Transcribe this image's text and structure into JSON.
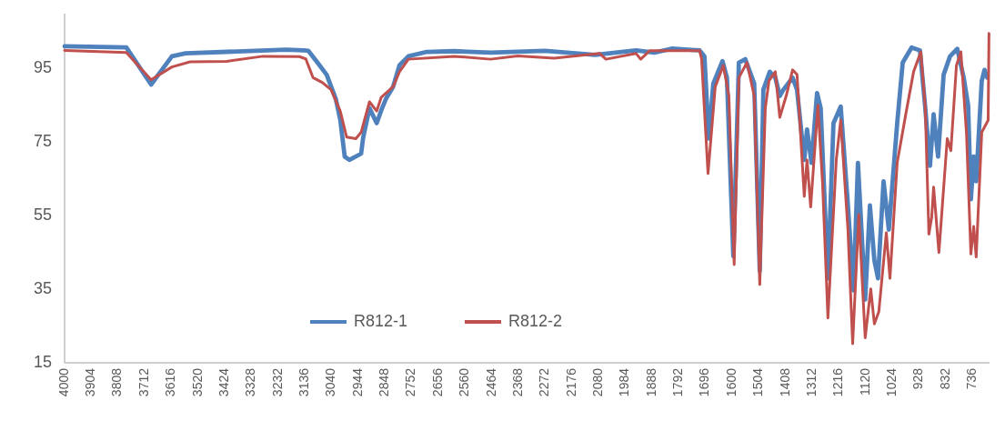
{
  "chart_data": {
    "type": "line",
    "xlim": [
      4000,
      675
    ],
    "xticks": [
      4000,
      3904,
      3808,
      3712,
      3616,
      3520,
      3424,
      3328,
      3232,
      3136,
      3040,
      2944,
      2848,
      2752,
      2656,
      2560,
      2464,
      2368,
      2272,
      2176,
      2080,
      1984,
      1888,
      1792,
      1696,
      1600,
      1504,
      1408,
      1312,
      1216,
      1120,
      1024,
      928,
      832,
      736
    ],
    "ylim": [
      15,
      110
    ],
    "yticks": [
      15,
      35,
      55,
      75,
      95
    ],
    "grid": false,
    "legend": "bottom",
    "marker": "none",
    "line_style": "solid",
    "series": [
      {
        "name": "R812-1",
        "color": "#4f81bd",
        "x": [
          4000,
          3778,
          3689,
          3614,
          3565,
          3205,
          3140,
          3124,
          3091,
          3058,
          3025,
          3009,
          2993,
          2976,
          2934,
          2927,
          2904,
          2878,
          2862,
          2845,
          2819,
          2796,
          2764,
          2698,
          2600,
          2469,
          2273,
          2093,
          1946,
          1880,
          1815,
          1717,
          1700,
          1684,
          1668,
          1635,
          1619,
          1596,
          1576,
          1553,
          1521,
          1501,
          1488,
          1465,
          1445,
          1429,
          1416,
          1383,
          1367,
          1341,
          1331,
          1315,
          1295,
          1282,
          1256,
          1236,
          1210,
          1184,
          1164,
          1148,
          1122,
          1105,
          1089,
          1076,
          1056,
          1037,
          1007,
          987,
          955,
          925,
          906,
          889,
          876,
          860,
          840,
          817,
          791,
          768,
          752,
          742,
          732,
          723,
          703,
          693,
          683
        ],
        "values": [
          101.1,
          100.8,
          90.7,
          98.4,
          99.2,
          100.2,
          100,
          99.9,
          96.7,
          93.4,
          86.8,
          81.1,
          71.1,
          70.2,
          71.9,
          76.1,
          84.3,
          80.2,
          83.6,
          86.8,
          90.1,
          96.0,
          98.4,
          99.6,
          99.8,
          99.4,
          99.9,
          98.8,
          100,
          99.4,
          100.5,
          100.0,
          98.4,
          76.0,
          91.0,
          97.1,
          92.6,
          44,
          96.7,
          97.6,
          91.0,
          40,
          89.3,
          94.2,
          92.6,
          87.6,
          89.3,
          92.6,
          89.3,
          70.2,
          78.5,
          69.4,
          88.4,
          84.3,
          38.0,
          80.2,
          84.7,
          57.8,
          34.7,
          69.4,
          32.2,
          57.8,
          42.9,
          38.0,
          64.4,
          51.2,
          80.2,
          96.7,
          100.8,
          100.0,
          84.3,
          68.6,
          82.6,
          71.1,
          93.4,
          98.4,
          100.4,
          92.6,
          85.1,
          59.5,
          71.1,
          64.4,
          91.7,
          94.7,
          92.6
        ]
      },
      {
        "name": "R812-2",
        "color": "#c0504d",
        "x": [
          4000,
          3778,
          3689,
          3614,
          3549,
          3418,
          3287,
          3156,
          3133,
          3107,
          3074,
          3042,
          3009,
          2986,
          2953,
          2934,
          2904,
          2878,
          2862,
          2819,
          2796,
          2764,
          2600,
          2469,
          2371,
          2240,
          2077,
          2054,
          1946,
          1929,
          1897,
          1717,
          1710,
          1687,
          1661,
          1632,
          1612,
          1593,
          1576,
          1547,
          1521,
          1501,
          1481,
          1468,
          1445,
          1429,
          1406,
          1383,
          1367,
          1341,
          1331,
          1318,
          1292,
          1275,
          1256,
          1226,
          1210,
          1184,
          1167,
          1145,
          1122,
          1102,
          1089,
          1073,
          1046,
          1033,
          1007,
          974,
          948,
          922,
          906,
          893,
          883,
          876,
          857,
          827,
          814,
          794,
          778,
          758,
          742,
          732,
          723,
          703,
          680,
          677
        ],
        "values": [
          100.0,
          99.4,
          92.0,
          95.5,
          96.9,
          97.0,
          98.4,
          98.3,
          97.7,
          92.6,
          91.3,
          89.3,
          83.5,
          76.4,
          76.0,
          77.7,
          86.0,
          83.5,
          87.2,
          90.1,
          94.2,
          97.6,
          98.4,
          97.6,
          98.5,
          97.9,
          99.2,
          97.6,
          99.2,
          97.6,
          99.9,
          99.9,
          97.6,
          66.5,
          90.1,
          95.9,
          87.6,
          41.7,
          92.6,
          96.7,
          87.6,
          36.3,
          84.3,
          91.7,
          94.2,
          81.8,
          87.6,
          94.7,
          93.4,
          60.3,
          70.2,
          57.4,
          85.1,
          63.6,
          27.2,
          70.2,
          81.0,
          51.2,
          20.2,
          55.3,
          21.8,
          35.1,
          25.6,
          28.9,
          50.4,
          38.0,
          69.4,
          83.5,
          94.2,
          99.6,
          84.3,
          50.0,
          54.6,
          62.8,
          45.0,
          76.0,
          72.7,
          95.9,
          99.6,
          77.7,
          44.6,
          52.1,
          43.8,
          77.7,
          81.0,
          104.6
        ]
      }
    ]
  }
}
